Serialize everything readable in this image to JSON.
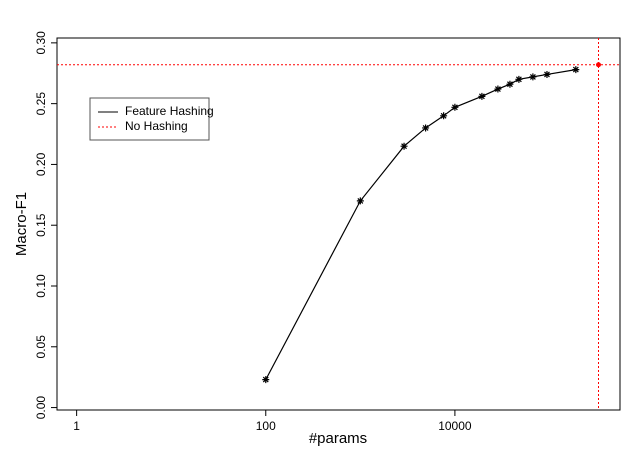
{
  "chart_data": {
    "type": "line",
    "xlabel": "#params",
    "ylabel": "Macro-F1",
    "xscale": "log",
    "xlim": [
      0.62,
      557000
    ],
    "ylim": [
      -0.002,
      0.304
    ],
    "xticks": [
      1,
      100,
      10000
    ],
    "yticks": [
      {
        "value": 0,
        "label": "0.00"
      },
      {
        "value": 0.05,
        "label": "0.05"
      },
      {
        "value": 0.1,
        "label": "0.10"
      },
      {
        "value": 0.15,
        "label": "0.15"
      },
      {
        "value": 0.2,
        "label": "0.20"
      },
      {
        "value": 0.25,
        "label": "0.25"
      },
      {
        "value": 0.3,
        "label": "0.30"
      }
    ],
    "legend": "upper left",
    "series": [
      {
        "name": "Feature Hashing",
        "color": "#000000",
        "style": "solid",
        "x": [
          100,
          1000,
          2900,
          4900,
          7600,
          10000,
          19300,
          28500,
          38200,
          47500,
          66800,
          94100,
          190000
        ],
        "values": [
          0.023,
          0.17,
          0.215,
          0.23,
          0.24,
          0.247,
          0.256,
          0.262,
          0.266,
          0.27,
          0.272,
          0.274,
          0.278
        ]
      },
      {
        "name": "No Hashing",
        "color": "#ff0000",
        "style": "dotted",
        "x": [
          330000
        ],
        "values": [
          0.282
        ]
      }
    ]
  }
}
